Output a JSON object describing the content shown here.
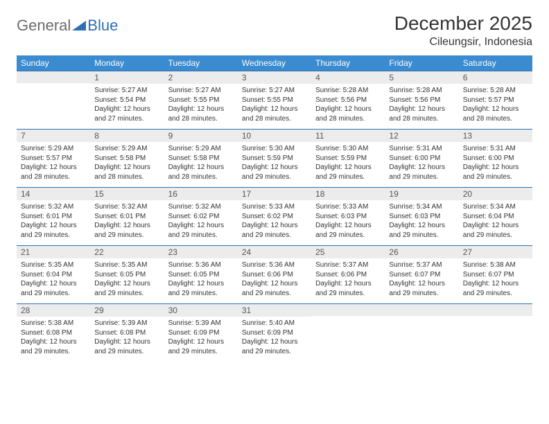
{
  "logo": {
    "part1": "General",
    "part2": "Blue"
  },
  "title": "December 2025",
  "location": "Cileungsir, Indonesia",
  "colors": {
    "header_bg": "#3b8bd0",
    "accent": "#2e6fb5",
    "daynum_bg": "#ececec",
    "text": "#333333",
    "logo_gray": "#6b6b6b",
    "logo_blue": "#2e6fb5",
    "page_bg": "#ffffff"
  },
  "fonts": {
    "title_size": 28,
    "location_size": 16,
    "header_size": 12,
    "body_size": 10
  },
  "weekdays": [
    "Sunday",
    "Monday",
    "Tuesday",
    "Wednesday",
    "Thursday",
    "Friday",
    "Saturday"
  ],
  "weeks": [
    [
      {
        "blank": true
      },
      {
        "num": "1",
        "sunrise": "5:27 AM",
        "sunset": "5:54 PM",
        "daylight": "12 hours and 27 minutes."
      },
      {
        "num": "2",
        "sunrise": "5:27 AM",
        "sunset": "5:55 PM",
        "daylight": "12 hours and 28 minutes."
      },
      {
        "num": "3",
        "sunrise": "5:27 AM",
        "sunset": "5:55 PM",
        "daylight": "12 hours and 28 minutes."
      },
      {
        "num": "4",
        "sunrise": "5:28 AM",
        "sunset": "5:56 PM",
        "daylight": "12 hours and 28 minutes."
      },
      {
        "num": "5",
        "sunrise": "5:28 AM",
        "sunset": "5:56 PM",
        "daylight": "12 hours and 28 minutes."
      },
      {
        "num": "6",
        "sunrise": "5:28 AM",
        "sunset": "5:57 PM",
        "daylight": "12 hours and 28 minutes."
      }
    ],
    [
      {
        "num": "7",
        "sunrise": "5:29 AM",
        "sunset": "5:57 PM",
        "daylight": "12 hours and 28 minutes."
      },
      {
        "num": "8",
        "sunrise": "5:29 AM",
        "sunset": "5:58 PM",
        "daylight": "12 hours and 28 minutes."
      },
      {
        "num": "9",
        "sunrise": "5:29 AM",
        "sunset": "5:58 PM",
        "daylight": "12 hours and 28 minutes."
      },
      {
        "num": "10",
        "sunrise": "5:30 AM",
        "sunset": "5:59 PM",
        "daylight": "12 hours and 29 minutes."
      },
      {
        "num": "11",
        "sunrise": "5:30 AM",
        "sunset": "5:59 PM",
        "daylight": "12 hours and 29 minutes."
      },
      {
        "num": "12",
        "sunrise": "5:31 AM",
        "sunset": "6:00 PM",
        "daylight": "12 hours and 29 minutes."
      },
      {
        "num": "13",
        "sunrise": "5:31 AM",
        "sunset": "6:00 PM",
        "daylight": "12 hours and 29 minutes."
      }
    ],
    [
      {
        "num": "14",
        "sunrise": "5:32 AM",
        "sunset": "6:01 PM",
        "daylight": "12 hours and 29 minutes."
      },
      {
        "num": "15",
        "sunrise": "5:32 AM",
        "sunset": "6:01 PM",
        "daylight": "12 hours and 29 minutes."
      },
      {
        "num": "16",
        "sunrise": "5:32 AM",
        "sunset": "6:02 PM",
        "daylight": "12 hours and 29 minutes."
      },
      {
        "num": "17",
        "sunrise": "5:33 AM",
        "sunset": "6:02 PM",
        "daylight": "12 hours and 29 minutes."
      },
      {
        "num": "18",
        "sunrise": "5:33 AM",
        "sunset": "6:03 PM",
        "daylight": "12 hours and 29 minutes."
      },
      {
        "num": "19",
        "sunrise": "5:34 AM",
        "sunset": "6:03 PM",
        "daylight": "12 hours and 29 minutes."
      },
      {
        "num": "20",
        "sunrise": "5:34 AM",
        "sunset": "6:04 PM",
        "daylight": "12 hours and 29 minutes."
      }
    ],
    [
      {
        "num": "21",
        "sunrise": "5:35 AM",
        "sunset": "6:04 PM",
        "daylight": "12 hours and 29 minutes."
      },
      {
        "num": "22",
        "sunrise": "5:35 AM",
        "sunset": "6:05 PM",
        "daylight": "12 hours and 29 minutes."
      },
      {
        "num": "23",
        "sunrise": "5:36 AM",
        "sunset": "6:05 PM",
        "daylight": "12 hours and 29 minutes."
      },
      {
        "num": "24",
        "sunrise": "5:36 AM",
        "sunset": "6:06 PM",
        "daylight": "12 hours and 29 minutes."
      },
      {
        "num": "25",
        "sunrise": "5:37 AM",
        "sunset": "6:06 PM",
        "daylight": "12 hours and 29 minutes."
      },
      {
        "num": "26",
        "sunrise": "5:37 AM",
        "sunset": "6:07 PM",
        "daylight": "12 hours and 29 minutes."
      },
      {
        "num": "27",
        "sunrise": "5:38 AM",
        "sunset": "6:07 PM",
        "daylight": "12 hours and 29 minutes."
      }
    ],
    [
      {
        "num": "28",
        "sunrise": "5:38 AM",
        "sunset": "6:08 PM",
        "daylight": "12 hours and 29 minutes."
      },
      {
        "num": "29",
        "sunrise": "5:39 AM",
        "sunset": "6:08 PM",
        "daylight": "12 hours and 29 minutes."
      },
      {
        "num": "30",
        "sunrise": "5:39 AM",
        "sunset": "6:09 PM",
        "daylight": "12 hours and 29 minutes."
      },
      {
        "num": "31",
        "sunrise": "5:40 AM",
        "sunset": "6:09 PM",
        "daylight": "12 hours and 29 minutes."
      },
      {
        "blank": true
      },
      {
        "blank": true
      },
      {
        "blank": true
      }
    ]
  ],
  "labels": {
    "sunrise": "Sunrise: ",
    "sunset": "Sunset: ",
    "daylight": "Daylight: "
  }
}
